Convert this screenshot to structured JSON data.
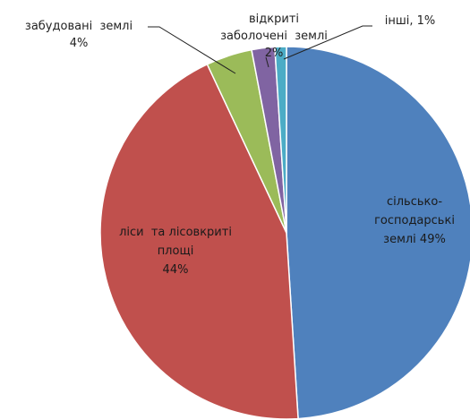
{
  "chart_data": {
    "type": "pie",
    "title": "",
    "slices": [
      {
        "lines": [
          "сільсько-",
          "господарські",
          "землі 49%"
        ],
        "value": 49,
        "color": "#4f81bd"
      },
      {
        "lines": [
          "ліси  та лісовкриті",
          "площі",
          "44%"
        ],
        "value": 44,
        "color": "#c0504d"
      },
      {
        "lines": [
          "забудовані  землі",
          "4%"
        ],
        "value": 4,
        "color": "#9bbb59"
      },
      {
        "lines": [
          "відкриті",
          "заболочені  землі",
          "2%"
        ],
        "value": 2,
        "color": "#8064a2"
      },
      {
        "lines": [
          "інші, 1%"
        ],
        "value": 1,
        "color": "#4bacc6"
      }
    ]
  }
}
